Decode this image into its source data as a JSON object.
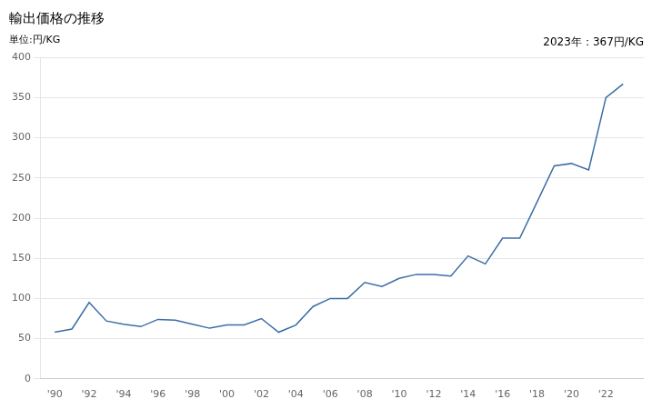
{
  "chart_data": {
    "type": "line",
    "title": "輸出価格の推移",
    "subtitle": "単位:円/KG",
    "annotation": "2023年：367円/KG",
    "x": [
      1990,
      1991,
      1992,
      1993,
      1994,
      1995,
      1996,
      1997,
      1998,
      1999,
      2000,
      2001,
      2002,
      2003,
      2004,
      2005,
      2006,
      2007,
      2008,
      2009,
      2010,
      2011,
      2012,
      2013,
      2014,
      2015,
      2016,
      2017,
      2018,
      2019,
      2020,
      2021,
      2022,
      2023
    ],
    "values": [
      58,
      62,
      95,
      72,
      68,
      65,
      74,
      73,
      68,
      63,
      67,
      67,
      75,
      58,
      67,
      90,
      100,
      100,
      120,
      115,
      125,
      130,
      130,
      128,
      153,
      143,
      175,
      175,
      220,
      265,
      268,
      260,
      350,
      367
    ],
    "color": "#3A6EA5",
    "xlim": [
      1989.2,
      2024.2
    ],
    "xticks": [
      {
        "value": 1990,
        "label": "'90"
      },
      {
        "value": 1992,
        "label": "'92"
      },
      {
        "value": 1994,
        "label": "'94"
      },
      {
        "value": 1996,
        "label": "'96"
      },
      {
        "value": 1998,
        "label": "'98"
      },
      {
        "value": 2000,
        "label": "'00"
      },
      {
        "value": 2002,
        "label": "'02"
      },
      {
        "value": 2004,
        "label": "'04"
      },
      {
        "value": 2006,
        "label": "'06"
      },
      {
        "value": 2008,
        "label": "'08"
      },
      {
        "value": 2010,
        "label": "'10"
      },
      {
        "value": 2012,
        "label": "'12"
      },
      {
        "value": 2014,
        "label": "'14"
      },
      {
        "value": 2016,
        "label": "'16"
      },
      {
        "value": 2018,
        "label": "'18"
      },
      {
        "value": 2020,
        "label": "'20"
      },
      {
        "value": 2022,
        "label": "'22"
      }
    ],
    "ylim": [
      0,
      400
    ],
    "yticks": [
      0,
      50,
      100,
      150,
      200,
      250,
      300,
      350,
      400
    ],
    "grid": "y"
  }
}
